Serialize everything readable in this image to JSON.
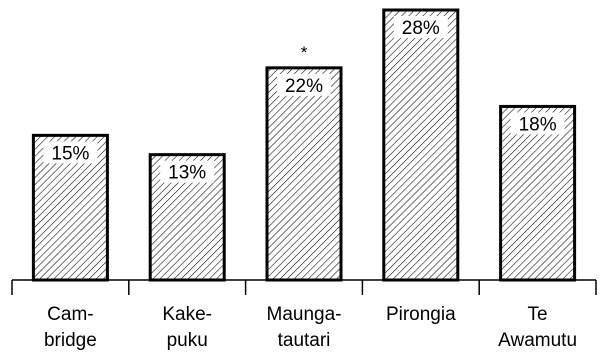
{
  "chart_data": {
    "type": "bar",
    "categories": [
      "Cam-\nbridge",
      "Kake-\npuku",
      "Maunga-\ntautari",
      "Pirongia",
      "Te\nAwamutu"
    ],
    "values": [
      15,
      13,
      22,
      28,
      18
    ],
    "value_labels": [
      "15%",
      "13%",
      "22%",
      "28%",
      "18%"
    ],
    "annotations": [
      {
        "category_index": 2,
        "text": "*"
      }
    ],
    "title": "",
    "xlabel": "",
    "ylabel": "",
    "ylim": [
      0,
      28
    ],
    "grid": false,
    "legend": "none",
    "pattern": "diagonal-hatch",
    "colors": {
      "bar_stroke": "#000000",
      "hatch": "#000000",
      "background": "#ffffff"
    }
  }
}
